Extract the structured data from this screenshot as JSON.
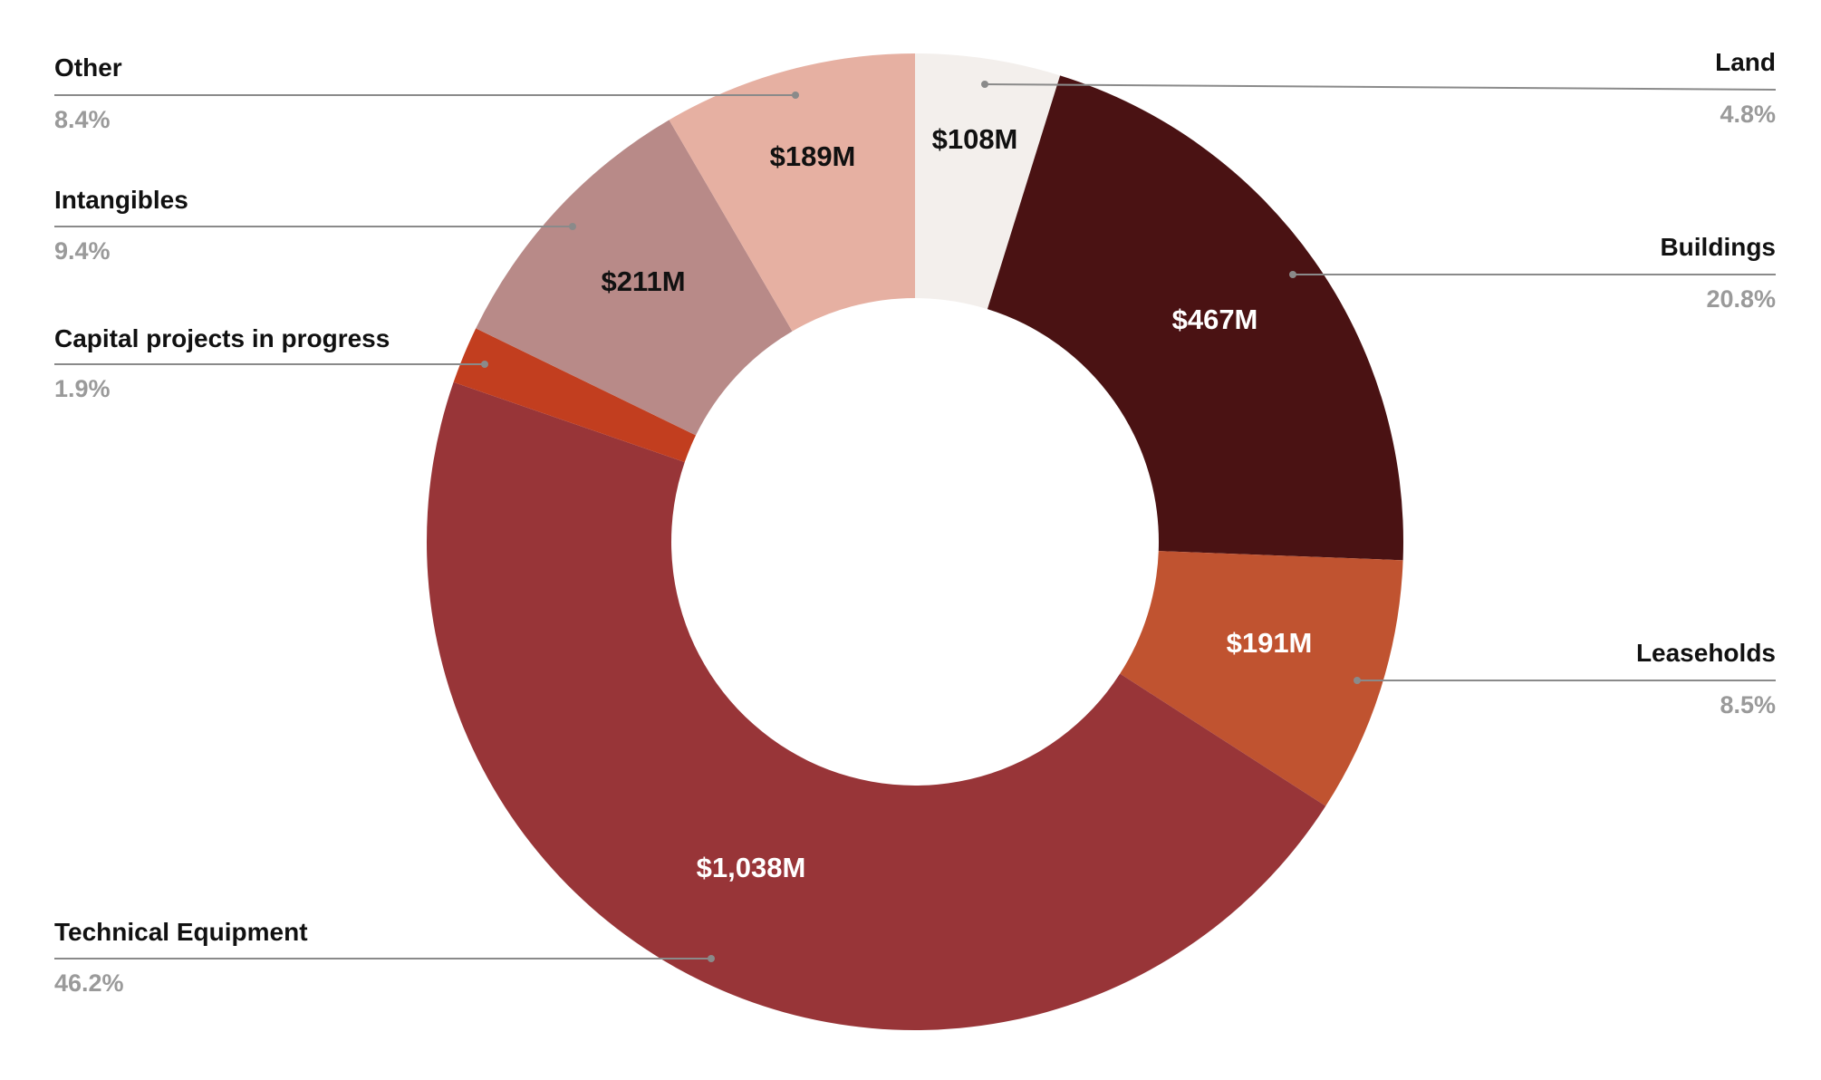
{
  "chart_data": {
    "type": "pie",
    "donut": true,
    "start": "top",
    "direction": "clockwise",
    "slices": [
      {
        "name": "Land",
        "value_label": "$108M",
        "value": 108,
        "percent": "4.8%",
        "pct": 4.8,
        "color": "#f3efec",
        "label_color": "#111111",
        "side": "right"
      },
      {
        "name": "Buildings",
        "value_label": "$467M",
        "value": 467,
        "percent": "20.8%",
        "pct": 20.8,
        "color": "#4a1213",
        "label_color": "#ffffff",
        "side": "right"
      },
      {
        "name": "Leaseholds",
        "value_label": "$191M",
        "value": 191,
        "percent": "8.5%",
        "pct": 8.5,
        "color": "#c05330",
        "label_color": "#ffffff",
        "side": "right"
      },
      {
        "name": "Technical Equipment",
        "value_label": "$1,038M",
        "value": 1038,
        "percent": "46.2%",
        "pct": 46.2,
        "color": "#983538",
        "label_color": "#ffffff",
        "side": "left"
      },
      {
        "name": "Capital projects in progress",
        "value_label": "",
        "value": null,
        "percent": "1.9%",
        "pct": 1.9,
        "color": "#c23e1f",
        "label_color": "#ffffff",
        "side": "left"
      },
      {
        "name": "Intangibles",
        "value_label": "$211M",
        "value": 211,
        "percent": "9.4%",
        "pct": 9.4,
        "color": "#b88a88",
        "label_color": "#111111",
        "side": "left"
      },
      {
        "name": "Other",
        "value_label": "$189M",
        "value": 189,
        "percent": "8.4%",
        "pct": 8.4,
        "color": "#e6b0a2",
        "label_color": "#111111",
        "side": "left"
      }
    ],
    "leader_color": "#8a8a8a"
  }
}
